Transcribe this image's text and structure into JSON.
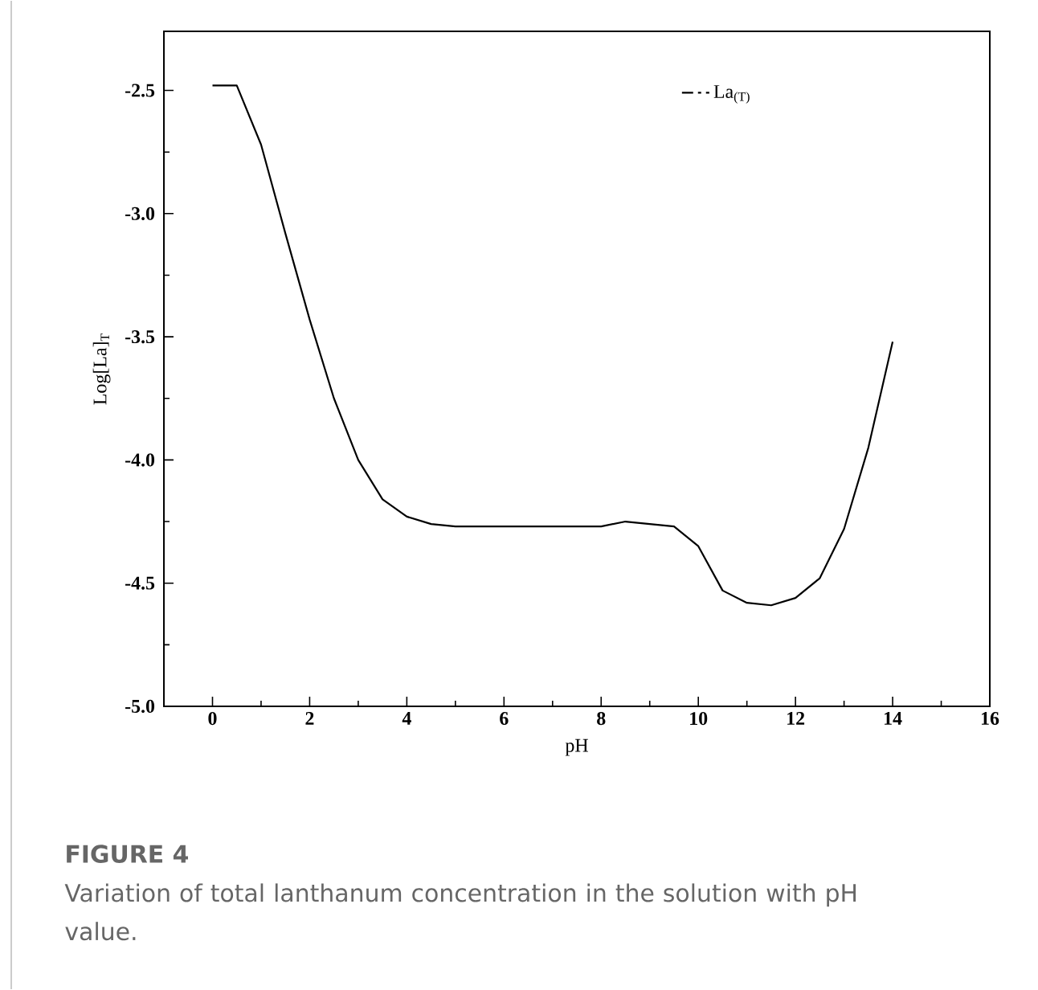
{
  "chart_data": {
    "type": "line",
    "title": "FIGURE 4",
    "subtitle": "Variation of total lanthanum concentration in the solution with pH value.",
    "xlabel": "pH",
    "ylabel": "Log[La]$_{T}$",
    "xlim": [
      -1,
      16
    ],
    "ylim": [
      -5.0,
      -2.26
    ],
    "xticks": [
      0,
      2,
      4,
      6,
      8,
      10,
      12,
      14,
      16
    ],
    "yticks": [
      {
        "value": -5.0,
        "label": "-5.0"
      },
      {
        "value": -4.5,
        "label": "-4.5"
      },
      {
        "value": -4.0,
        "label": "-4.0"
      },
      {
        "value": -3.5,
        "label": "-3.5"
      },
      {
        "value": -3.0,
        "label": "-3.0"
      },
      {
        "value": -2.5,
        "label": "-2.5"
      }
    ],
    "legend": "top right",
    "series": [
      {
        "name": "La$_{(T)}$",
        "color": "#000000",
        "x": [
          0,
          0.5,
          1,
          1.5,
          2,
          2.5,
          3,
          3.5,
          4,
          4.5,
          5,
          5.5,
          6,
          6.5,
          7,
          7.5,
          8,
          8.5,
          9,
          9.5,
          10,
          10.5,
          11,
          11.5,
          12,
          12.5,
          13,
          13.5,
          14
        ],
        "values": [
          -2.48,
          -2.48,
          -2.72,
          -3.08,
          -3.43,
          -3.75,
          -4.0,
          -4.16,
          -4.23,
          -4.26,
          -4.27,
          -4.27,
          -4.27,
          -4.27,
          -4.27,
          -4.27,
          -4.27,
          -4.25,
          -4.26,
          -4.27,
          -4.35,
          -4.53,
          -4.58,
          -4.59,
          -4.56,
          -4.48,
          -4.28,
          -3.95,
          -3.52
        ]
      }
    ]
  }
}
